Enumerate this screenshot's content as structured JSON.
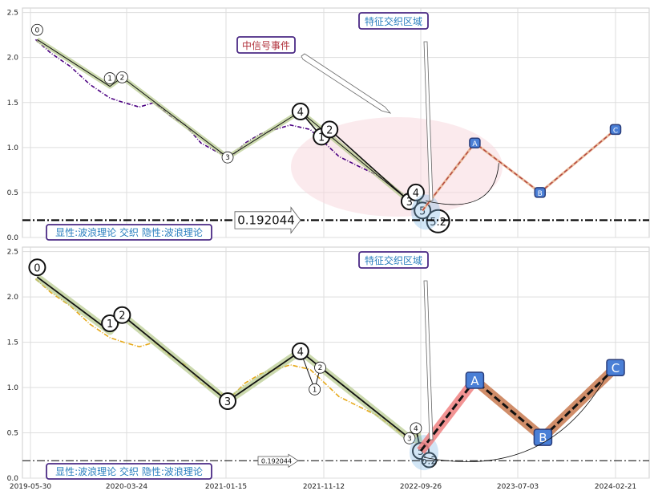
{
  "chart_data": [
    {
      "type": "line",
      "xlabel": "",
      "ylabel": "",
      "x_ticks": [],
      "y_ticks": [
        "0.0",
        "0.5",
        "1.0",
        "1.5",
        "2.0",
        "2.5"
      ],
      "ylim": [
        0,
        2.55
      ],
      "grid": true,
      "price_series": {
        "color": "#4b0082",
        "x": [
          "2019-06-15",
          "2019-08-01",
          "2019-10-01",
          "2019-12-01",
          "2020-02-01",
          "2020-03-15",
          "2020-05-01",
          "2020-06-15",
          "2020-08-01",
          "2020-09-15",
          "2020-11-01",
          "2020-12-20",
          "2021-02-01",
          "2021-03-15",
          "2021-05-01",
          "2021-06-15",
          "2021-08-01",
          "2021-10-01",
          "2021-11-15",
          "2022-01-01",
          "2022-03-01",
          "2022-05-01",
          "2022-07-01",
          "2022-09-01",
          "2022-10-15"
        ],
        "values": [
          2.2,
          2.05,
          1.9,
          1.7,
          1.55,
          1.5,
          1.45,
          1.5,
          1.35,
          1.25,
          1.05,
          0.95,
          0.9,
          1.05,
          1.15,
          1.2,
          1.25,
          1.2,
          1.05,
          0.9,
          0.8,
          0.7,
          0.55,
          0.4,
          0.3
        ]
      },
      "wave_points": [
        {
          "label": "0",
          "date": "2019-06-20",
          "value": 2.2
        },
        {
          "label": "1",
          "date": "2020-02-01",
          "value": 1.68
        },
        {
          "label": "2",
          "date": "2020-03-10",
          "value": 1.78
        },
        {
          "label": "3",
          "date": "2021-01-20",
          "value": 0.89
        },
        {
          "label": "4",
          "date": "2021-09-01",
          "value": 1.4
        },
        {
          "label": "1",
          "date": "2021-11-05",
          "value": 1.12
        },
        {
          "label": "2",
          "date": "2021-12-01",
          "value": 1.2
        },
        {
          "label": "3",
          "date": "2022-08-20",
          "value": 0.4
        },
        {
          "label": "4",
          "date": "2022-09-10",
          "value": 0.5
        },
        {
          "label": "5",
          "date": "2022-10-01",
          "value": 0.3
        },
        {
          "label": "5.2",
          "date": "2022-11-15",
          "value": 0.18
        }
      ],
      "forecast_points": [
        {
          "label": "A",
          "date": "2023-03-01",
          "value": 1.05
        },
        {
          "label": "B",
          "date": "2023-08-25",
          "value": 0.5
        },
        {
          "label": "C",
          "date": "2024-02-21",
          "value": 1.2
        }
      ],
      "hline": {
        "value": 0.192044,
        "label": "0.192044"
      },
      "annotations": {
        "signal_event": "中信号事件",
        "feature_zone": "特征交织区域",
        "legend_box": "显性:波浪理论 交织 隐性:波浪理论"
      }
    },
    {
      "type": "line",
      "xlabel": "",
      "ylabel": "",
      "x_ticks": [
        "2019-05-30",
        "2020-03-24",
        "2021-01-15",
        "2021-11-12",
        "2022-09-26",
        "2023-07-03",
        "2024-02-21"
      ],
      "y_ticks": [
        "0.0",
        "0.5",
        "1.0",
        "1.5",
        "2.0",
        "2.5"
      ],
      "ylim": [
        0,
        2.55
      ],
      "grid": true,
      "price_series": {
        "color": "#e6a817",
        "x": [
          "2019-06-15",
          "2019-08-01",
          "2019-10-01",
          "2019-12-01",
          "2020-02-01",
          "2020-03-15",
          "2020-05-01",
          "2020-06-15",
          "2020-08-01",
          "2020-09-15",
          "2020-11-01",
          "2020-12-20",
          "2021-02-01",
          "2021-03-15",
          "2021-05-01",
          "2021-06-15",
          "2021-08-01",
          "2021-10-01",
          "2021-11-15",
          "2022-01-01",
          "2022-03-01",
          "2022-05-01",
          "2022-07-01",
          "2022-09-01",
          "2022-10-15"
        ],
        "values": [
          2.2,
          2.05,
          1.9,
          1.7,
          1.55,
          1.5,
          1.45,
          1.5,
          1.35,
          1.25,
          1.05,
          0.95,
          0.9,
          1.05,
          1.15,
          1.2,
          1.25,
          1.2,
          1.05,
          0.9,
          0.8,
          0.7,
          0.55,
          0.4,
          0.3
        ]
      },
      "wave_points": [
        {
          "label": "0",
          "date": "2019-06-20",
          "value": 2.22
        },
        {
          "label": "1",
          "date": "2020-02-01",
          "value": 1.62
        },
        {
          "label": "2",
          "date": "2020-03-10",
          "value": 1.8
        },
        {
          "label": "3",
          "date": "2021-01-20",
          "value": 0.85
        },
        {
          "label": "4",
          "date": "2021-09-01",
          "value": 1.4
        },
        {
          "label": "1",
          "date": "2021-10-15",
          "value": 0.98
        },
        {
          "label": "2",
          "date": "2021-11-01",
          "value": 1.22
        },
        {
          "label": "3",
          "date": "2022-08-20",
          "value": 0.44
        },
        {
          "label": "4",
          "date": "2022-09-10",
          "value": 0.55
        },
        {
          "label": "5",
          "date": "2022-09-26",
          "value": 0.3
        },
        {
          "label": "5.2",
          "date": "2022-10-20",
          "value": 0.2
        }
      ],
      "forecast_points": [
        {
          "label": "A",
          "date": "2023-03-01",
          "value": 1.08
        },
        {
          "label": "B",
          "date": "2023-09-01",
          "value": 0.45
        },
        {
          "label": "C",
          "date": "2024-02-21",
          "value": 1.22
        }
      ],
      "hline": {
        "value": 0.192044,
        "label": "0.192044"
      },
      "annotations": {
        "feature_zone": "特征交织区域",
        "legend_box": "显性:波浪理论 交织 隐性:波浪理论"
      }
    }
  ]
}
